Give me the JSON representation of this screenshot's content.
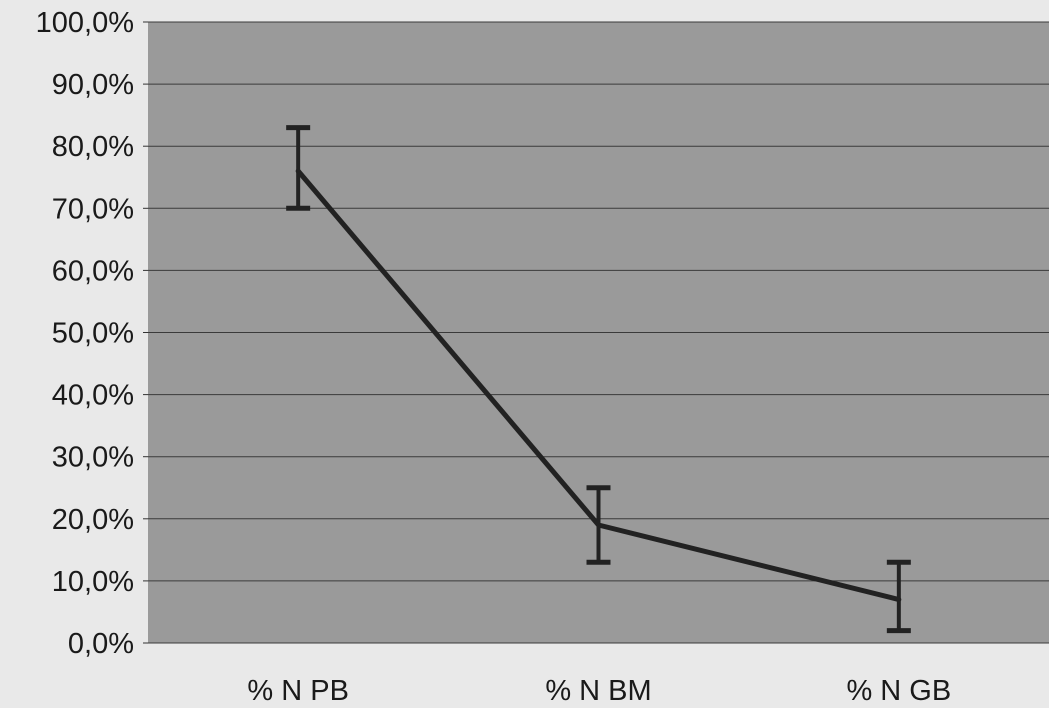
{
  "chart_data": {
    "type": "line",
    "title": "",
    "xlabel": "",
    "ylabel": "",
    "categories": [
      "% N PB",
      "% N BM",
      "% N GB"
    ],
    "series": [
      {
        "values": [
          0.76,
          0.19,
          0.07
        ],
        "error_low": [
          0.7,
          0.13,
          0.02
        ],
        "error_high": [
          0.83,
          0.25,
          0.13
        ]
      }
    ],
    "ylim": [
      0,
      1
    ],
    "yticks": [
      0,
      0.1,
      0.2,
      0.3,
      0.4,
      0.5,
      0.6,
      0.7,
      0.8,
      0.9,
      1.0
    ],
    "ytick_labels": [
      "0,0%",
      "10,0%",
      "20,0%",
      "30,0%",
      "40,0%",
      "50,0%",
      "60,0%",
      "70,0%",
      "80,0%",
      "90,0%",
      "100,0%"
    ],
    "grid": true,
    "legend": "none",
    "colors": {
      "plot_background": "#9a9a9a",
      "line": "#222222",
      "gridline": "#3a3a3a",
      "page_background": "#e9e9e9"
    }
  }
}
